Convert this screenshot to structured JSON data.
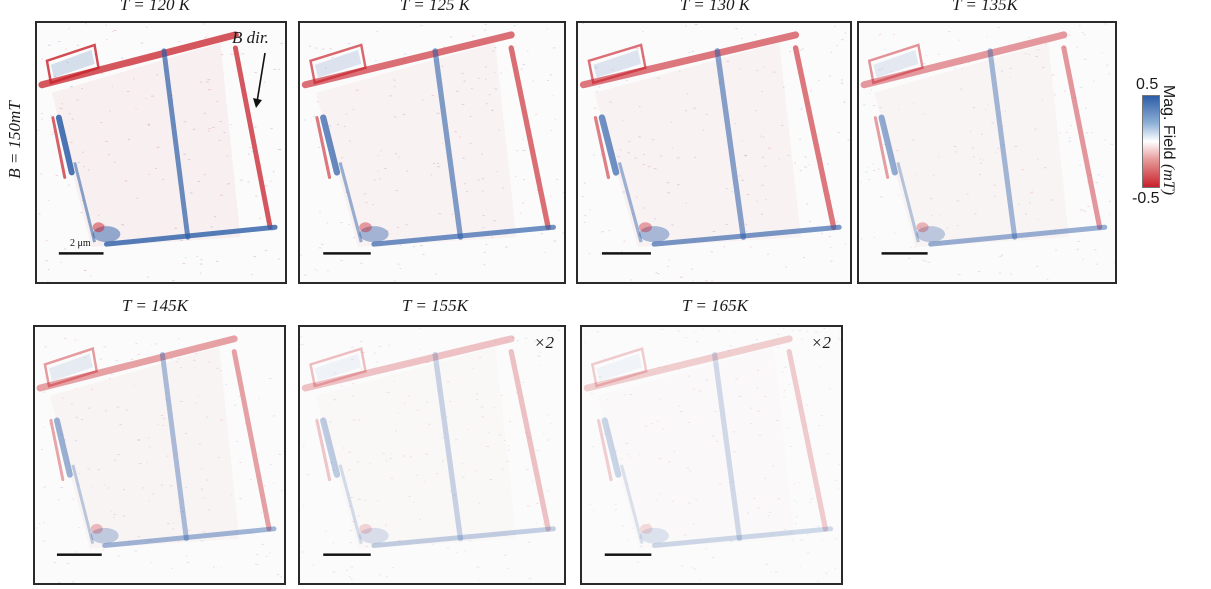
{
  "side_label": "B = 150mT",
  "b_dir_label": "B dir.",
  "scalebar_label": "2 μm",
  "colorbar": {
    "max": "0.5",
    "min": "-0.5",
    "label": "Mag. Field",
    "unit": "(mT)",
    "color_pos": "#2d5ea8",
    "color_neg": "#c8202a"
  },
  "panels": [
    {
      "title": "T = 120 K",
      "multiplier": "",
      "strength": 1.0
    },
    {
      "title": "T = 125 K",
      "multiplier": "",
      "strength": 0.85
    },
    {
      "title": "T = 130 K",
      "multiplier": "",
      "strength": 0.8
    },
    {
      "title": "T = 135K",
      "multiplier": "",
      "strength": 0.6
    },
    {
      "title": "T = 145K",
      "multiplier": "",
      "strength": 0.55
    },
    {
      "title": "T = 155K",
      "multiplier": "×2",
      "strength": 0.35
    },
    {
      "title": "T = 165K",
      "multiplier": "×2",
      "strength": 0.28
    }
  ]
}
